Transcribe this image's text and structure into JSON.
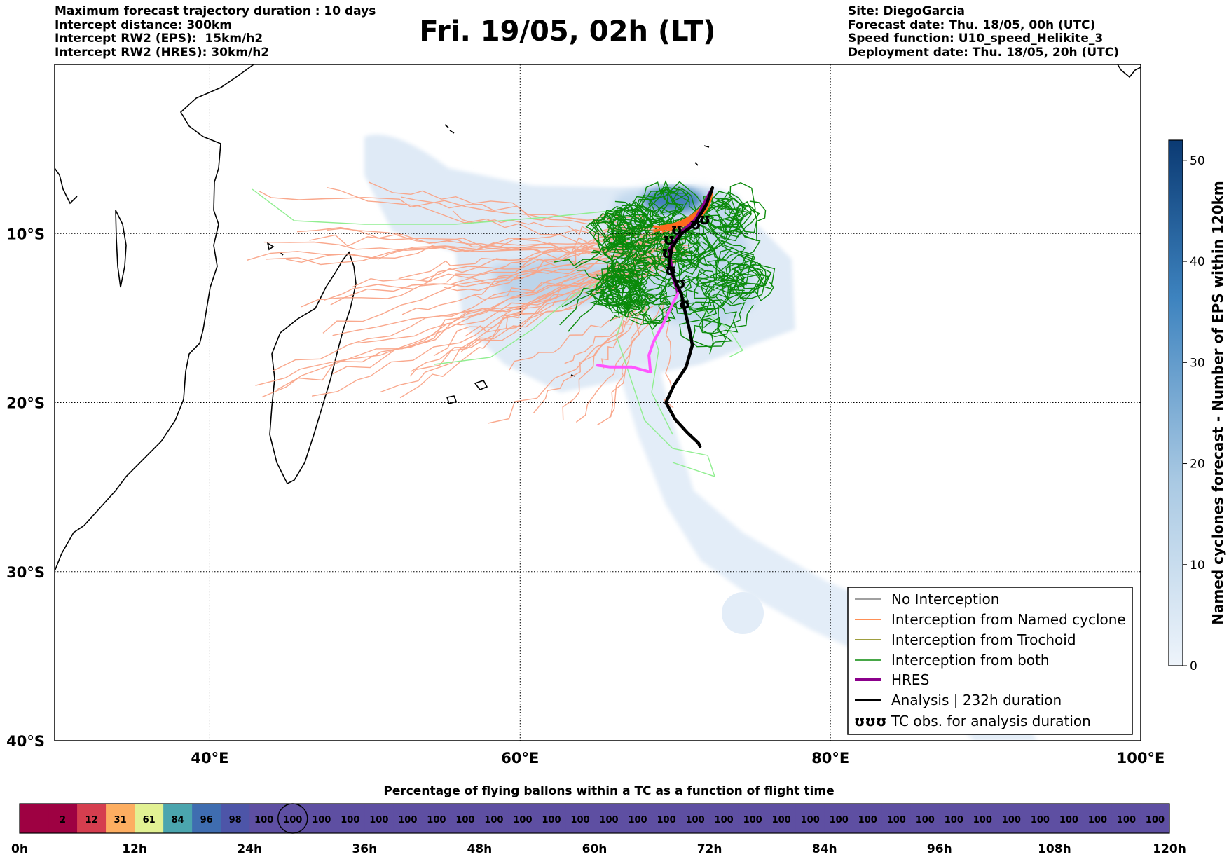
{
  "header": {
    "left": [
      "Maximum forecast trajectory duration : 10 days",
      "Intercept distance: 300km",
      "Intercept RW2 (EPS):  15km/h2",
      "Intercept RW2 (HRES): 30km/h2"
    ],
    "title": "Fri. 19/05, 02h (LT)",
    "right": [
      "Site: DiegoGarcia",
      "Forecast date: Thu. 18/05, 00h (UTC)",
      "Speed function: U10_speed_Helikite_3",
      "Deployment date: Thu. 18/05, 20h (UTC)"
    ]
  },
  "colors": {
    "coast": "#000000",
    "density_light": "#dfeaf6",
    "density_mid": "#b7d0e9",
    "density_dark": "#2f72b0",
    "no_interception": "#808080",
    "named_cyclone": "#ff6a1e",
    "named_cyclone_light": "#f9a487",
    "trochoid": "#7f7f00",
    "both": "#0a8a0a",
    "both_light": "#90ee90",
    "hres": "#8b008b",
    "hres_light": "#ff55ff",
    "analysis": "#000000"
  },
  "chart_data": {
    "type": "map-trajectories",
    "x_axis": {
      "min": 30,
      "max": 100,
      "ticks": [
        40,
        60,
        80,
        100
      ],
      "tick_labels": [
        "40°E",
        "60°E",
        "80°E",
        "100°E"
      ]
    },
    "y_axis": {
      "min": -40,
      "max": 0,
      "ticks": [
        -10,
        -20,
        -30,
        -40
      ],
      "tick_labels": [
        "10°S",
        "20°S",
        "30°S",
        "40°S"
      ]
    },
    "grid": true,
    "legend_position": "bottom-right",
    "legend": [
      {
        "label": "No Interception",
        "style": "no_interception"
      },
      {
        "label": "Interception from Named cyclone",
        "style": "named_cyclone"
      },
      {
        "label": "Interception from Trochoid",
        "style": "trochoid"
      },
      {
        "label": "Interception from both",
        "style": "both"
      },
      {
        "label": "HRES",
        "style": "hres"
      },
      {
        "label": "Analysis | 232h duration",
        "style": "analysis"
      },
      {
        "label": "TC obs. for analysis duration",
        "style": "tc_obs",
        "symbol": "ʊʊʊ"
      }
    ],
    "site": {
      "name": "DiegoGarcia",
      "lon": 72.4,
      "lat": -7.3
    },
    "analysis_track": [
      [
        72.4,
        -7.3
      ],
      [
        72.0,
        -8.3
      ],
      [
        71.2,
        -9.5
      ],
      [
        70.4,
        -10.0
      ],
      [
        69.8,
        -10.8
      ],
      [
        69.6,
        -11.8
      ],
      [
        70.0,
        -12.8
      ],
      [
        70.4,
        -13.6
      ],
      [
        70.6,
        -14.5
      ],
      [
        70.9,
        -15.6
      ],
      [
        71.1,
        -16.6
      ],
      [
        70.7,
        -17.9
      ],
      [
        69.9,
        -19.0
      ],
      [
        69.4,
        -20.0
      ],
      [
        70.0,
        -21.0
      ],
      [
        70.8,
        -21.8
      ],
      [
        71.5,
        -22.4
      ],
      [
        71.6,
        -22.6
      ]
    ],
    "hres_track": [
      [
        72.3,
        -7.5
      ],
      [
        71.3,
        -9.2
      ],
      [
        70.3,
        -10.0
      ],
      [
        69.6,
        -11.0
      ],
      [
        69.8,
        -12.4
      ],
      [
        70.2,
        -13.5
      ],
      [
        69.8,
        -14.2
      ],
      [
        69.2,
        -15.4
      ],
      [
        68.6,
        -16.4
      ],
      [
        68.3,
        -17.2
      ],
      [
        68.4,
        -18.2
      ],
      [
        67.2,
        -17.9
      ],
      [
        65.8,
        -17.9
      ],
      [
        65.0,
        -17.8
      ]
    ],
    "tc_obs": [
      [
        70.1,
        -9.8
      ],
      [
        69.6,
        -10.4
      ],
      [
        69.5,
        -11.2
      ],
      [
        69.7,
        -12.2
      ],
      [
        70.3,
        -13.0
      ],
      [
        70.6,
        -14.2
      ],
      [
        71.3,
        -9.5
      ],
      [
        71.9,
        -9.2
      ]
    ],
    "density_colorbar": {
      "label": "Named cyclones forecast - Number of EPS within 120km",
      "min": 0,
      "max": 52,
      "ticks": [
        0,
        10,
        20,
        30,
        40,
        50
      ]
    },
    "flight_time_bar": {
      "title": "Percentage of flying ballons within a TC as a function of flight time",
      "hours_per_cell": 3,
      "values": [
        0,
        2,
        12,
        31,
        61,
        84,
        96,
        98,
        100,
        100,
        100,
        100,
        100,
        100,
        100,
        100,
        100,
        100,
        100,
        100,
        100,
        100,
        100,
        100,
        100,
        100,
        100,
        100,
        100,
        100,
        100,
        100,
        100,
        100,
        100,
        100,
        100,
        100,
        100,
        100
      ],
      "first_value_printed": false,
      "highlight_index": 9,
      "axis_ticks": [
        0,
        12,
        24,
        36,
        48,
        60,
        72,
        84,
        96,
        108,
        120
      ],
      "axis_labels": [
        "0h",
        "12h",
        "24h",
        "36h",
        "48h",
        "60h",
        "72h",
        "84h",
        "96h",
        "108h",
        "120h"
      ]
    }
  }
}
